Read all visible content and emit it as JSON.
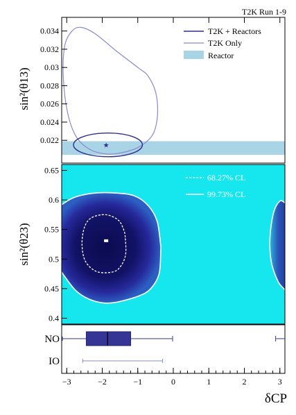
{
  "run_label": "T2K Run 1-9",
  "chart_data": [
    {
      "type": "contour",
      "panel": "top",
      "ylabel": "sin²(θ13)",
      "yticks": [
        "0.022",
        "0.024",
        "0.026",
        "0.028",
        "0.03",
        "0.032",
        "0.034"
      ],
      "ylim": [
        0.0195,
        0.0355
      ],
      "xlim": [
        -3.1416,
        3.1416
      ],
      "legend": {
        "placement": "top-right",
        "entries": [
          {
            "label": "T2K + Reactors",
            "color": "#2e2e91",
            "style": "line"
          },
          {
            "label": "T2K Only",
            "color": "#8a88cc",
            "style": "line"
          },
          {
            "label": "Reactor",
            "color": "#a9d4e6",
            "style": "band"
          }
        ]
      },
      "reactor_band": [
        0.0204,
        0.0219
      ],
      "best_fit": {
        "x": -1.89,
        "y": 0.0215
      },
      "t2k_only_contour": [
        [
          -2.6,
          0.0344
        ],
        [
          -2.2,
          0.0337
        ],
        [
          -1.6,
          0.0318
        ],
        [
          -1.0,
          0.03
        ],
        [
          -0.7,
          0.029
        ],
        [
          -0.48,
          0.027
        ],
        [
          -0.45,
          0.0245
        ],
        [
          -0.6,
          0.0225
        ],
        [
          -1.0,
          0.0212
        ],
        [
          -1.5,
          0.0206
        ],
        [
          -1.9,
          0.0205
        ],
        [
          -2.35,
          0.021
        ],
        [
          -2.75,
          0.0225
        ],
        [
          -3.0,
          0.0255
        ],
        [
          -3.1,
          0.0295
        ],
        [
          -3.05,
          0.0325
        ],
        [
          -2.85,
          0.034
        ]
      ],
      "t2k_reactors_contour": {
        "center": [
          -1.84,
          0.0215
        ],
        "half_width": 0.97,
        "half_height": 0.0013
      }
    },
    {
      "type": "heatmap",
      "panel": "middle",
      "ylabel": "sin²(θ23)",
      "yticks": [
        "0.4",
        "0.45",
        "0.5",
        "0.55",
        "0.6",
        "0.65"
      ],
      "ylim": [
        0.39,
        0.66
      ],
      "xlim": [
        -3.1416,
        3.1416
      ],
      "legend": {
        "placement": "top-right",
        "entries": [
          {
            "label": "68.27% CL",
            "style": "dashed",
            "color": "#ffffff"
          },
          {
            "label": "99.73% CL",
            "style": "solid",
            "color": "#ffffff"
          }
        ]
      },
      "best_fit": {
        "x": -1.89,
        "y": 0.531
      },
      "cl68_contour": [
        [
          -1.35,
          0.535
        ],
        [
          -1.35,
          0.505
        ],
        [
          -1.55,
          0.483
        ],
        [
          -1.85,
          0.477
        ],
        [
          -2.2,
          0.48
        ],
        [
          -2.48,
          0.497
        ],
        [
          -2.57,
          0.525
        ],
        [
          -2.5,
          0.554
        ],
        [
          -2.3,
          0.57
        ],
        [
          -1.9,
          0.575
        ],
        [
          -1.55,
          0.566
        ],
        [
          -1.4,
          0.55
        ]
      ],
      "cl99_contour": [
        [
          -0.35,
          0.52
        ],
        [
          -0.4,
          0.475
        ],
        [
          -0.65,
          0.449
        ],
        [
          -1.0,
          0.437
        ],
        [
          -1.6,
          0.427
        ],
        [
          -2.0,
          0.426
        ],
        [
          -2.4,
          0.433
        ],
        [
          -2.75,
          0.447
        ],
        [
          -3.05,
          0.47
        ],
        [
          -3.1416,
          0.478
        ]
      ],
      "cl99_contour_upper": [
        [
          -3.1416,
          0.592
        ],
        [
          -2.8,
          0.604
        ],
        [
          -2.3,
          0.611
        ],
        [
          -1.7,
          0.612
        ],
        [
          -1.1,
          0.607
        ],
        [
          -0.7,
          0.59
        ],
        [
          -0.45,
          0.563
        ],
        [
          -0.35,
          0.52
        ]
      ],
      "cl99_contour_right": [
        [
          3.1416,
          0.595
        ],
        [
          3.0,
          0.598
        ],
        [
          2.82,
          0.578
        ],
        [
          2.72,
          0.535
        ],
        [
          2.76,
          0.495
        ],
        [
          2.95,
          0.462
        ],
        [
          3.1416,
          0.448
        ]
      ]
    },
    {
      "type": "box",
      "panel": "bottom",
      "xlabel": "δCP",
      "xticks": [
        "−3",
        "−2",
        "−1",
        "0",
        "1",
        "2",
        "3"
      ],
      "xlim": [
        -3.1416,
        3.1416
      ],
      "categories": [
        "NO",
        "IO"
      ],
      "no_box": {
        "q1": -2.45,
        "median": -1.85,
        "q3": -1.2
      },
      "no_whisker": [
        -3.1416,
        -0.02
      ],
      "no_whisker_right": [
        2.88,
        3.1416
      ],
      "io_range": [
        -2.55,
        -0.3
      ]
    }
  ]
}
